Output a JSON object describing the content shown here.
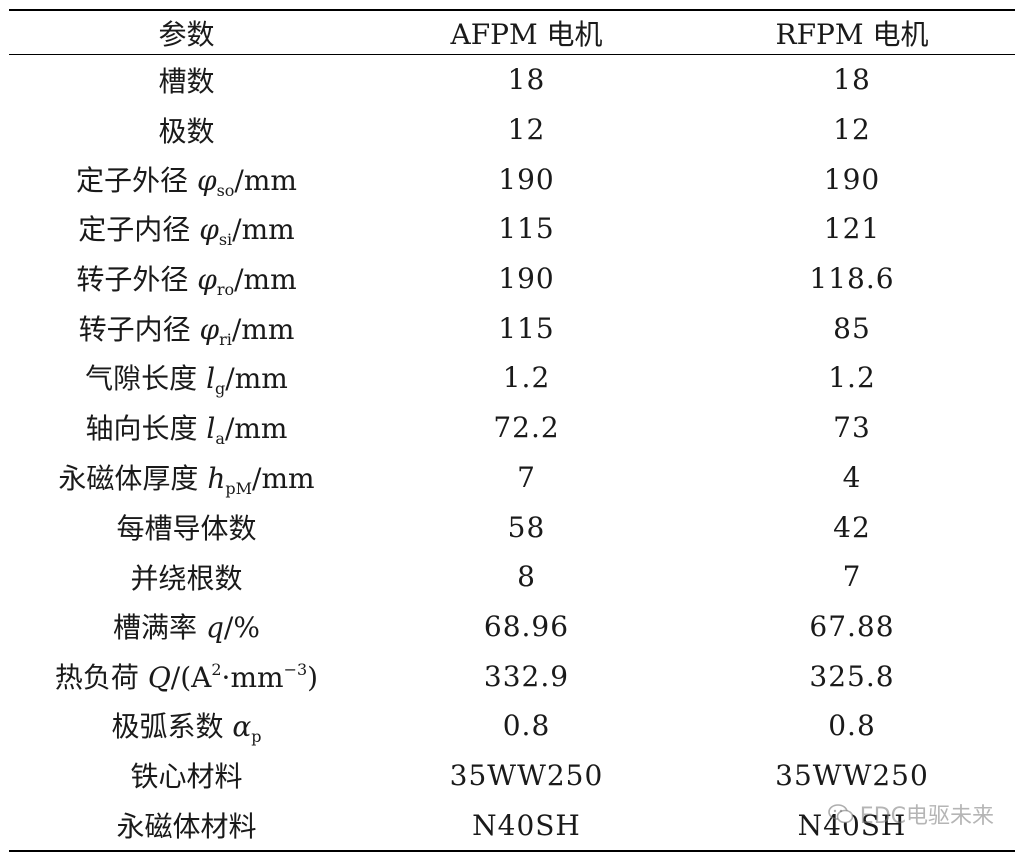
{
  "table": {
    "headers": [
      "参数",
      "AFPM 电机",
      "RFPM 电机"
    ],
    "rows": [
      {
        "label": "槽数",
        "afpm": "18",
        "rfpm": "18"
      },
      {
        "label": "极数",
        "afpm": "12",
        "rfpm": "12"
      },
      {
        "label": "定子外径",
        "sym": "φ",
        "sub": "so",
        "unit": "/mm",
        "afpm": "190",
        "rfpm": "190"
      },
      {
        "label": "定子内径",
        "sym": "φ",
        "sub": "si",
        "unit": "/mm",
        "afpm": "115",
        "rfpm": "121"
      },
      {
        "label": "转子外径",
        "sym": "φ",
        "sub": "ro",
        "unit": "/mm",
        "afpm": "190",
        "rfpm": "118.6"
      },
      {
        "label": "转子内径",
        "sym": "φ",
        "sub": "ri",
        "unit": "/mm",
        "afpm": "115",
        "rfpm": "85"
      },
      {
        "label": "气隙长度",
        "sym": "l",
        "sub": "g",
        "unit": "/mm",
        "afpm": "1.2",
        "rfpm": "1.2"
      },
      {
        "label": "轴向长度",
        "sym": "l",
        "sub": "a",
        "unit": "/mm",
        "afpm": "72.2",
        "rfpm": "73"
      },
      {
        "label": "永磁体厚度",
        "sym": "h",
        "sub": "pM",
        "unit": "/mm",
        "afpm": "7",
        "rfpm": "4"
      },
      {
        "label": "每槽导体数",
        "afpm": "58",
        "rfpm": "42"
      },
      {
        "label": "并绕根数",
        "afpm": "8",
        "rfpm": "7"
      },
      {
        "label": "槽满率",
        "sym": "q",
        "unit": "/%",
        "afpm": "68.96",
        "rfpm": "67.88"
      },
      {
        "label": "热负荷",
        "sym": "Q",
        "unit_pre": "/(A",
        "sup1": "2",
        "unit_mid": "·mm",
        "sup2": "−3",
        "unit_post": ")",
        "afpm": "332.9",
        "rfpm": "325.8"
      },
      {
        "label": "极弧系数",
        "sym": "α",
        "sub": "p",
        "afpm": "0.8",
        "rfpm": "0.8"
      },
      {
        "label": "铁心材料",
        "afpm": "35WW250",
        "rfpm": "35WW250"
      },
      {
        "label": "永磁体材料",
        "afpm": "N40SH",
        "rfpm": "N40SH"
      }
    ]
  },
  "watermark": {
    "text": "EDC电驱未来",
    "icon": "wechat-icon"
  }
}
